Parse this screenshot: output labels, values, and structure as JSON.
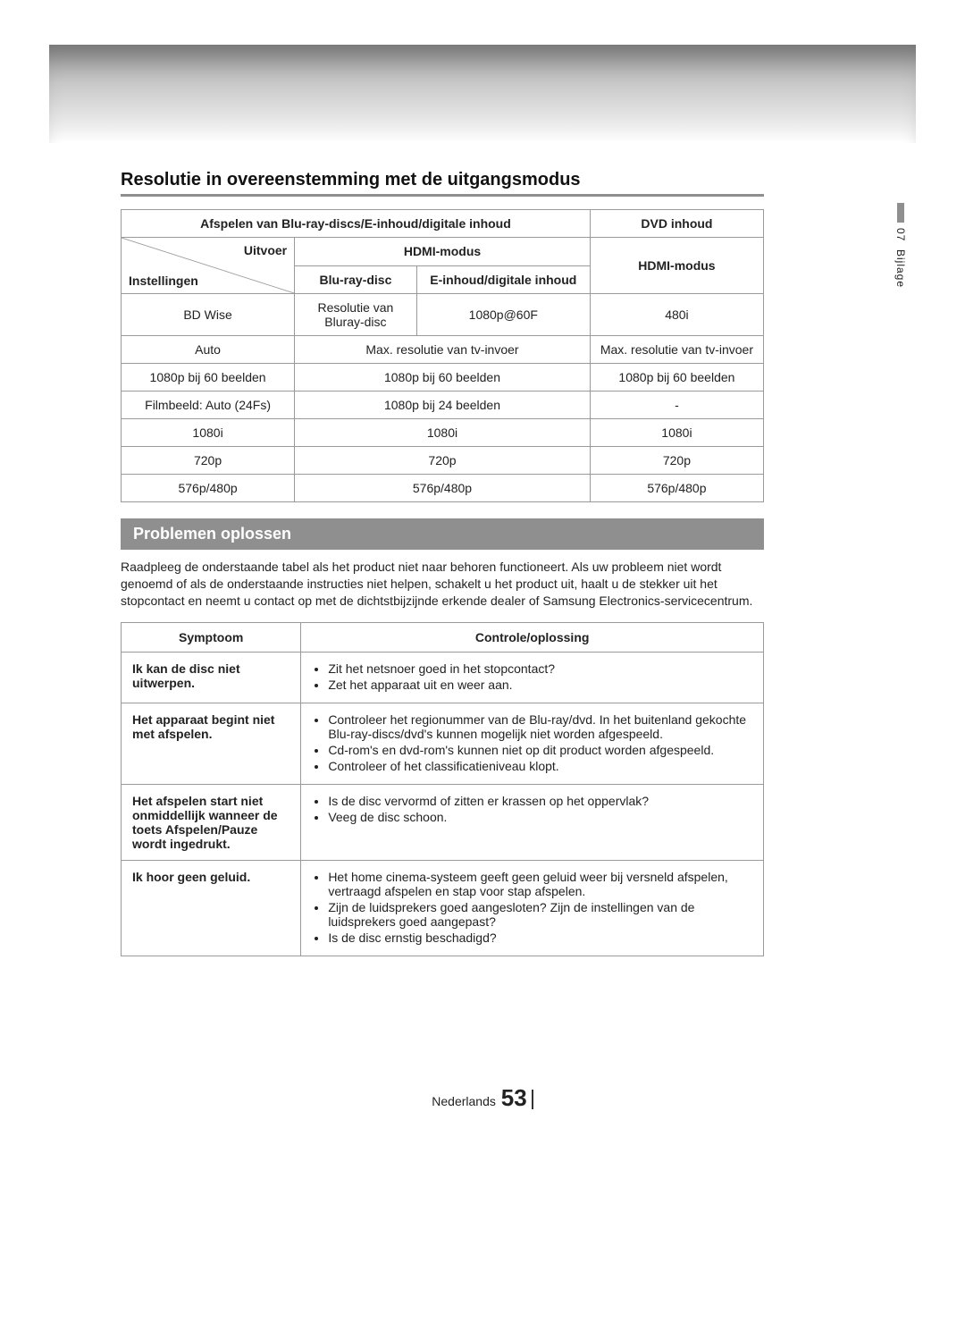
{
  "colors": {
    "heading_rule": "#8f8f8f",
    "subheading_bg": "#8f8f8f",
    "subheading_text": "#ffffff",
    "border": "#9a9a9a",
    "text": "#222222",
    "top_gradient_dark": "#9d9d9d",
    "top_gradient_light": "#ffffff"
  },
  "typography": {
    "base_font": "Arial",
    "heading_size_pt": 15,
    "body_size_pt": 10.5
  },
  "side_tab": {
    "number": "07",
    "label": "Bijlage"
  },
  "section_heading": "Resolutie in overeenstemming met de uitgangsmodus",
  "res_table": {
    "col_widths_percent": [
      27,
      19,
      27,
      27
    ],
    "header_group_left": "Afspelen van Blu-ray-discs/E-inhoud/digitale inhoud",
    "header_group_right": "DVD inhoud",
    "diag_top": "Uitvoer",
    "diag_bottom": "Instellingen",
    "hdmi_modus": "HDMI-modus",
    "sub_bluray": "Blu-ray-disc",
    "sub_einhoud": "E-inhoud/digitale inhoud",
    "rows": [
      {
        "label": "BD Wise",
        "bluray": "Resolutie van Bluray-disc",
        "einhoud": "1080p@60F",
        "dvd": "480i"
      },
      {
        "label": "Auto",
        "merged_center": "Max. resolutie van tv-invoer",
        "dvd": "Max. resolutie van tv-invoer"
      },
      {
        "label": "1080p bij 60 beelden",
        "merged_center": "1080p bij 60 beelden",
        "dvd": "1080p bij 60 beelden"
      },
      {
        "label": "Filmbeeld: Auto (24Fs)",
        "merged_center": "1080p bij 24 beelden",
        "dvd": "-"
      },
      {
        "label": "1080i",
        "merged_center": "1080i",
        "dvd": "1080i"
      },
      {
        "label": "720p",
        "merged_center": "720p",
        "dvd": "720p"
      },
      {
        "label": "576p/480p",
        "merged_center": "576p/480p",
        "dvd": "576p/480p"
      }
    ]
  },
  "troubleshoot": {
    "heading": "Problemen oplossen",
    "intro": "Raadpleeg de onderstaande tabel als het product niet naar behoren functioneert. Als uw probleem niet wordt genoemd of als de onderstaande instructies niet helpen, schakelt u het product uit, haalt u de stekker uit het stopcontact en neemt u contact op met de dichtstbijzijnde erkende dealer of Samsung Electronics-servicecentrum.",
    "col_headers": {
      "symptom": "Symptoom",
      "solution": "Controle/oplossing"
    },
    "rows": [
      {
        "symptom": "Ik kan de disc niet uitwerpen.",
        "bullets": [
          "Zit het netsnoer goed in het stopcontact?",
          "Zet het apparaat uit en weer aan."
        ]
      },
      {
        "symptom": "Het apparaat begint niet met afspelen.",
        "bullets": [
          "Controleer het regionummer van de Blu-ray/dvd. In het buitenland gekochte Blu-ray-discs/dvd's kunnen mogelijk niet worden afgespeeld.",
          "Cd-rom's en dvd-rom's kunnen niet op dit product worden afgespeeld.",
          "Controleer of het classificatieniveau klopt."
        ]
      },
      {
        "symptom": "Het afspelen start niet onmiddellijk wanneer de toets Afspelen/Pauze wordt ingedrukt.",
        "bullets": [
          "Is de disc vervormd of zitten er krassen op het oppervlak?",
          "Veeg de disc schoon."
        ]
      },
      {
        "symptom": "Ik hoor geen geluid.",
        "bullets": [
          "Het home cinema-systeem geeft geen geluid weer bij versneld afspelen, vertraagd afspelen en stap voor stap afspelen.",
          "Zijn de luidsprekers goed aangesloten? Zijn de instellingen van de luidsprekers goed aangepast?",
          "Is de disc ernstig beschadigd?"
        ]
      }
    ]
  },
  "footer": {
    "lang": "Nederlands",
    "page": "53"
  }
}
